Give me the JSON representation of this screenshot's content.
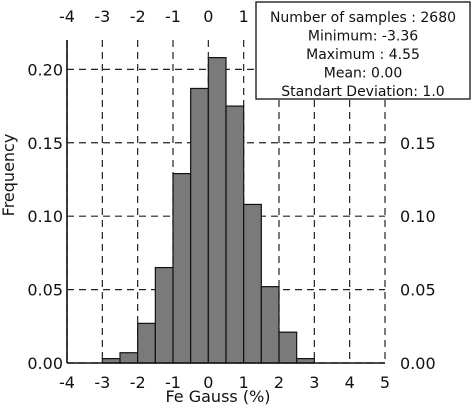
{
  "chart_data": {
    "type": "bar",
    "xlabel": "Fe Gauss (%)",
    "ylabel": "Frequency",
    "xlim": [
      -4,
      5
    ],
    "ylim": [
      0,
      0.22
    ],
    "x_ticks": [
      -4,
      -3,
      -2,
      -1,
      0,
      1,
      2,
      3,
      4,
      5
    ],
    "x_tick_labels": [
      "-4",
      "-3",
      "-2",
      "-1",
      "0",
      "1",
      "2",
      "3",
      "4",
      "5"
    ],
    "top_x_tick_labels": [
      "-4",
      "-3",
      "-2",
      "-1",
      "0",
      "1"
    ],
    "y_ticks": [
      0.0,
      0.05,
      0.1,
      0.15,
      0.2
    ],
    "y_tick_labels": [
      "0.00",
      "0.05",
      "0.10",
      "0.15",
      "0.20"
    ],
    "right_y_tick_labels": [
      "0.00",
      "0.05",
      "0.10",
      "0.15"
    ],
    "grid": true,
    "bin_width": 0.5,
    "bins": [
      {
        "x0": -3.0,
        "value": 0.003
      },
      {
        "x0": -2.5,
        "value": 0.007
      },
      {
        "x0": -2.0,
        "value": 0.027
      },
      {
        "x0": -1.5,
        "value": 0.065
      },
      {
        "x0": -1.0,
        "value": 0.129
      },
      {
        "x0": -0.5,
        "value": 0.187
      },
      {
        "x0": 0.0,
        "value": 0.208
      },
      {
        "x0": 0.5,
        "value": 0.175
      },
      {
        "x0": 1.0,
        "value": 0.108
      },
      {
        "x0": 1.5,
        "value": 0.052
      },
      {
        "x0": 2.0,
        "value": 0.021
      },
      {
        "x0": 2.5,
        "value": 0.003
      }
    ],
    "stats_lines": [
      "Number of samples : 2680",
      "Minimum: -3.36",
      "Maximum : 4.55",
      "Mean: 0.00",
      "Standart Deviation: 1.0"
    ],
    "colors": {
      "bar_fill": "#7a7a7a",
      "bar_stroke": "#111111",
      "grid": "#222222",
      "axis": "#111111"
    }
  }
}
